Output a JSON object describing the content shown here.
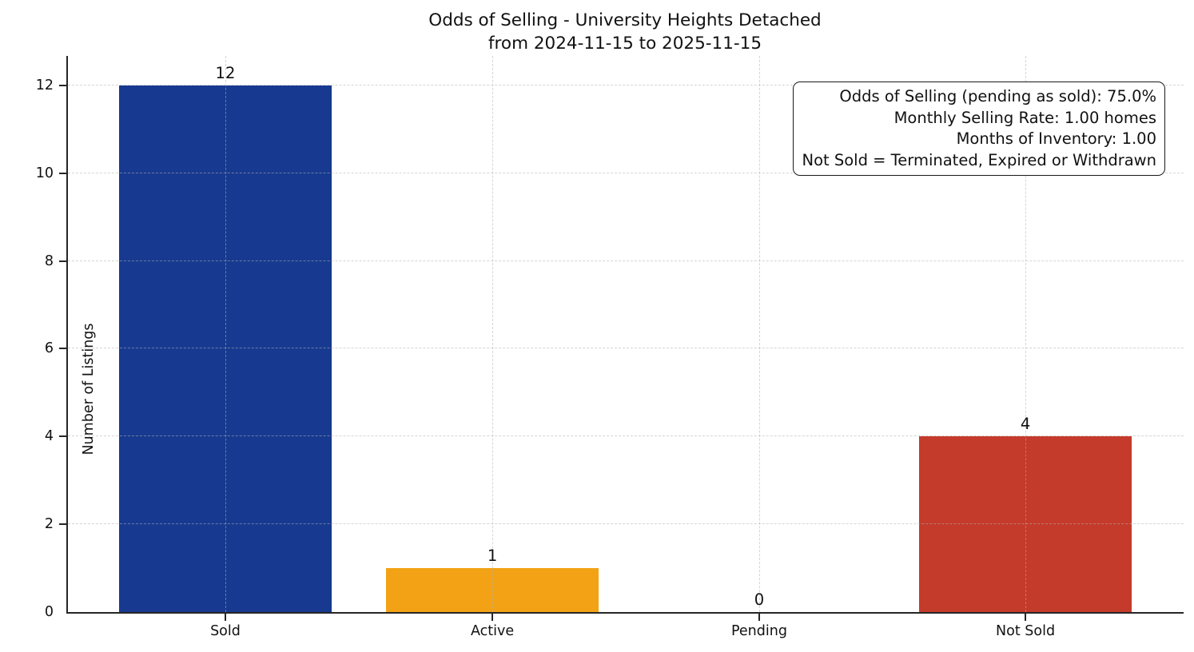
{
  "figure": {
    "title_line1": "Odds of Selling - University Heights Detached",
    "title_line2": "from 2024-11-15 to 2025-11-15"
  },
  "chart_data": {
    "type": "bar",
    "title": "Odds of Selling - University Heights Detached\nfrom 2024-11-15 to 2025-11-15",
    "categories": [
      "Sold",
      "Active",
      "Pending",
      "Not Sold"
    ],
    "values": [
      12,
      1,
      0,
      4
    ],
    "value_labels": [
      "12",
      "1",
      "0",
      "4"
    ],
    "bar_colors": [
      "#17398F",
      "#F2A214",
      "#999999",
      "#C43A2B"
    ],
    "xlabel": "",
    "ylabel": "Number of Listings",
    "yticks": [
      0,
      2,
      4,
      6,
      8,
      10,
      12
    ],
    "ylim": [
      0,
      12.67
    ],
    "grid": true,
    "grid_style": "dashed",
    "legend": "none",
    "annotation": {
      "position": "top-right",
      "lines": [
        "Odds of Selling (pending as sold): 75.0%",
        "Monthly Selling Rate: 1.00 homes",
        "Months of Inventory: 1.00",
        "Not Sold = Terminated, Expired or Withdrawn"
      ]
    }
  }
}
